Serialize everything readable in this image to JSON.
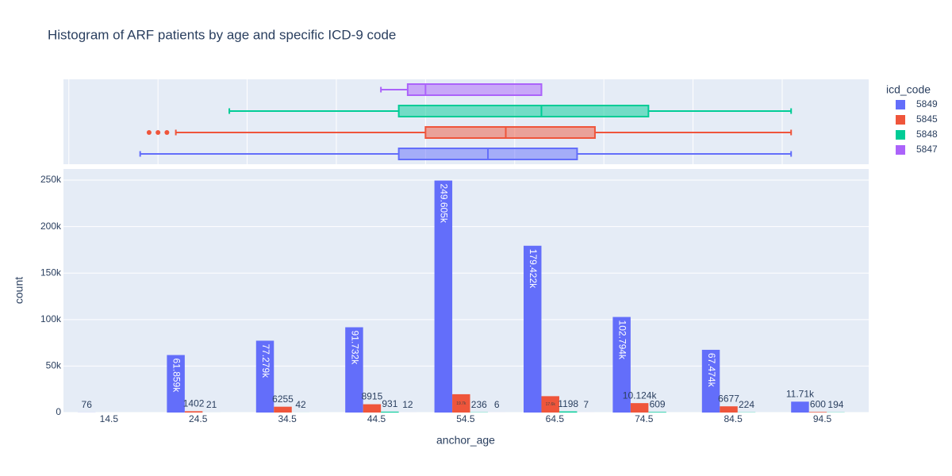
{
  "chart_data": {
    "type": "histogram",
    "title": "Histogram of ARF patients by age and specific ICD-9 code",
    "x_label": "anchor_age",
    "y_label": "count",
    "legend_title": "icd_code",
    "legend_position": "right",
    "grid": true,
    "marginal": "box",
    "bins": [
      10,
      20,
      30,
      40,
      50,
      60,
      70,
      80,
      90,
      100
    ],
    "xlim": [
      9.4,
      99.7
    ],
    "xticks": [
      14.5,
      24.5,
      34.5,
      44.5,
      54.5,
      64.5,
      74.5,
      84.5,
      94.5
    ],
    "box_grid": [
      10,
      20,
      30,
      40,
      50,
      60,
      70,
      80,
      90
    ],
    "ylim": [
      0,
      262000
    ],
    "yticks": [
      0,
      {
        "value": 50000,
        "label": "50k"
      },
      {
        "value": 100000,
        "label": "100k"
      },
      {
        "value": 150000,
        "label": "150k"
      },
      {
        "value": 200000,
        "label": "200k"
      },
      {
        "value": 250000,
        "label": "250k"
      }
    ],
    "series": [
      {
        "name": "5849",
        "color": "#636efa",
        "values": [
          76,
          61859,
          77279,
          91732,
          249605,
          179422,
          102794,
          67474,
          11710
        ],
        "value_labels": [
          "76",
          "61.859k",
          "77.279k",
          "91.732k",
          "249.605k",
          "179.422k",
          "102.794k",
          "67.474k",
          "11.71k"
        ],
        "box": {
          "min": 18,
          "q1": 47,
          "median": 57,
          "q3": 67,
          "max": 91,
          "outliers": []
        }
      },
      {
        "name": "5845",
        "color": "#EF553B",
        "values": [
          null,
          1402,
          6255,
          8915,
          19700,
          17600,
          10124,
          6677,
          600
        ],
        "value_labels": [
          null,
          "1402",
          "6255",
          "8915",
          "19.7k",
          "17.6k",
          "10.124k",
          "6677",
          "600"
        ],
        "box": {
          "min": 22,
          "q1": 50,
          "median": 59,
          "q3": 69,
          "max": 91,
          "outliers": [
            19,
            20,
            21
          ]
        }
      },
      {
        "name": "5848",
        "color": "#00cc96",
        "values": [
          null,
          21,
          42,
          931,
          236,
          1198,
          609,
          224,
          194
        ],
        "box": {
          "min": 28,
          "q1": 47,
          "median": 63,
          "q3": 75,
          "max": 91,
          "outliers": []
        }
      },
      {
        "name": "5847",
        "color": "#ab63fa",
        "values": [
          null,
          null,
          null,
          12,
          6,
          7,
          null,
          null,
          null
        ],
        "box": {
          "min": 45,
          "q1": 48,
          "median": 50,
          "q3": 63,
          "max": 63,
          "outliers": []
        }
      }
    ]
  }
}
